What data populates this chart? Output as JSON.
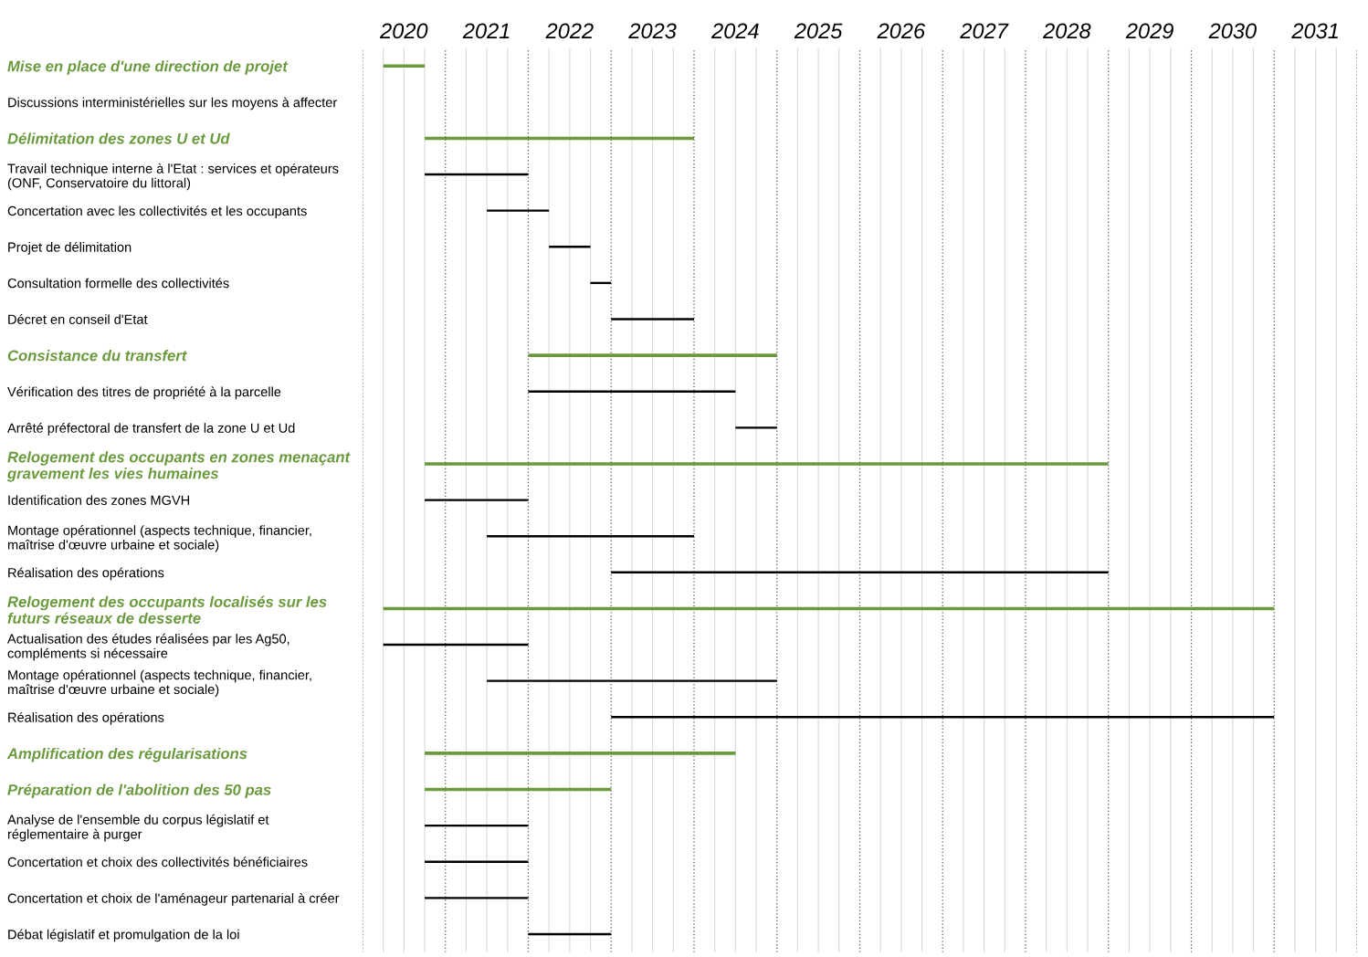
{
  "chart_data": {
    "type": "bar",
    "orientation": "horizontal",
    "grid": "x",
    "categories": [
      "Mise en place d'une direction de projet",
      "Discussions interministérielles sur les moyens à affecter",
      "Délimitation des zones U et Ud",
      "Travail technique interne à l'Etat : services et opérateurs\n(ONF, Conservatoire du littoral)",
      "Concertation avec les collectivités et les occupants",
      "Projet de délimitation",
      "Consultation formelle des collectivités",
      "Décret en conseil d'Etat",
      "Consistance du transfert",
      "Vérification des titres de propriété à la parcelle",
      "Arrêté préfectoral de transfert de la zone U et Ud",
      "Relogement des occupants en zones menaçant\ngravement les vies humaines",
      "Identification des zones MGVH",
      "Montage opérationnel (aspects technique, financier,\nmaîtrise d'œuvre urbaine et sociale)",
      "Réalisation des opérations",
      "Relogement des occupants localisés sur les\nfuturs réseaux de desserte",
      "Actualisation des études réalisées par les Ag50,\ncompléments si nécessaire",
      "Montage opérationnel (aspects technique, financier,\nmaîtrise d'œuvre urbaine et sociale)",
      "Réalisation des opérations",
      "Amplification des régularisations",
      "Préparation de l'abolition des 50 pas",
      "Analyse de l'ensemble du corpus législatif et\nréglementaire à purger",
      "Concertation et choix des collectivités bénéficiaires",
      "Concertation et choix de l'aménageur partenarial à créer",
      "Débat législatif et promulgation de la loi"
    ],
    "series": [
      {
        "color": "#6a9a3d",
        "base": [
          2020.25,
          null,
          2020.75,
          null,
          null,
          null,
          null,
          null,
          2022.0,
          null,
          null,
          2020.75,
          null,
          null,
          null,
          2020.25,
          null,
          null,
          null,
          2020.75,
          2020.75,
          null,
          null,
          null,
          null
        ],
        "values": [
          0.5,
          null,
          3.25,
          null,
          null,
          null,
          null,
          null,
          3.0,
          null,
          null,
          8.25,
          null,
          null,
          null,
          10.75,
          null,
          null,
          null,
          3.75,
          2.25,
          null,
          null,
          null,
          null
        ]
      },
      {
        "color": "#000000",
        "base": [
          null,
          null,
          null,
          2020.75,
          2021.5,
          2022.25,
          2022.75,
          2023.0,
          null,
          2022.0,
          2024.5,
          null,
          2020.75,
          2021.5,
          2023.0,
          null,
          2020.25,
          2021.5,
          2023.0,
          null,
          null,
          2020.75,
          2020.75,
          2020.75,
          2022.0
        ],
        "values": [
          null,
          null,
          null,
          1.25,
          0.75,
          0.5,
          0.25,
          1.0,
          null,
          2.5,
          0.5,
          null,
          1.25,
          2.5,
          6.0,
          null,
          1.75,
          3.5,
          8.0,
          null,
          null,
          1.25,
          1.25,
          1.25,
          1.0
        ]
      }
    ],
    "xlim": [
      2020,
      2032
    ],
    "xticks": [
      {
        "value": 2020,
        "label": null
      },
      {
        "value": 2020.25,
        "label": null
      },
      {
        "value": 2020.5,
        "label": "2020"
      },
      {
        "value": 2020.75,
        "label": null
      },
      {
        "value": 2021,
        "label": null
      },
      {
        "value": 2021.25,
        "label": null
      },
      {
        "value": 2021.5,
        "label": "2021"
      },
      {
        "value": 2021.75,
        "label": null
      },
      {
        "value": 2022,
        "label": null
      },
      {
        "value": 2022.25,
        "label": null
      },
      {
        "value": 2022.5,
        "label": "2022"
      },
      {
        "value": 2022.75,
        "label": null
      },
      {
        "value": 2023,
        "label": null
      },
      {
        "value": 2023.25,
        "label": null
      },
      {
        "value": 2023.5,
        "label": "2023"
      },
      {
        "value": 2023.75,
        "label": null
      },
      {
        "value": 2024,
        "label": null
      },
      {
        "value": 2024.25,
        "label": null
      },
      {
        "value": 2024.5,
        "label": "2024"
      },
      {
        "value": 2024.75,
        "label": null
      },
      {
        "value": 2025,
        "label": null
      },
      {
        "value": 2025.25,
        "label": null
      },
      {
        "value": 2025.5,
        "label": "2025"
      },
      {
        "value": 2025.75,
        "label": null
      },
      {
        "value": 2026,
        "label": null
      },
      {
        "value": 2026.25,
        "label": null
      },
      {
        "value": 2026.5,
        "label": "2026"
      },
      {
        "value": 2026.75,
        "label": null
      },
      {
        "value": 2027,
        "label": null
      },
      {
        "value": 2027.25,
        "label": null
      },
      {
        "value": 2027.5,
        "label": "2027"
      },
      {
        "value": 2027.75,
        "label": null
      },
      {
        "value": 2028,
        "label": null
      },
      {
        "value": 2028.25,
        "label": null
      },
      {
        "value": 2028.5,
        "label": "2028"
      },
      {
        "value": 2028.75,
        "label": null
      },
      {
        "value": 2029,
        "label": null
      },
      {
        "value": 2029.25,
        "label": null
      },
      {
        "value": 2029.5,
        "label": "2029"
      },
      {
        "value": 2029.75,
        "label": null
      },
      {
        "value": 2030,
        "label": null
      },
      {
        "value": 2030.25,
        "label": null
      },
      {
        "value": 2030.5,
        "label": "2030"
      },
      {
        "value": 2030.75,
        "label": null
      },
      {
        "value": 2031,
        "label": null
      },
      {
        "value": 2031.25,
        "label": null
      },
      {
        "value": 2031.5,
        "label": "2031"
      },
      {
        "value": 2031.75,
        "label": null
      },
      {
        "value": 2032,
        "label": null
      }
    ]
  }
}
